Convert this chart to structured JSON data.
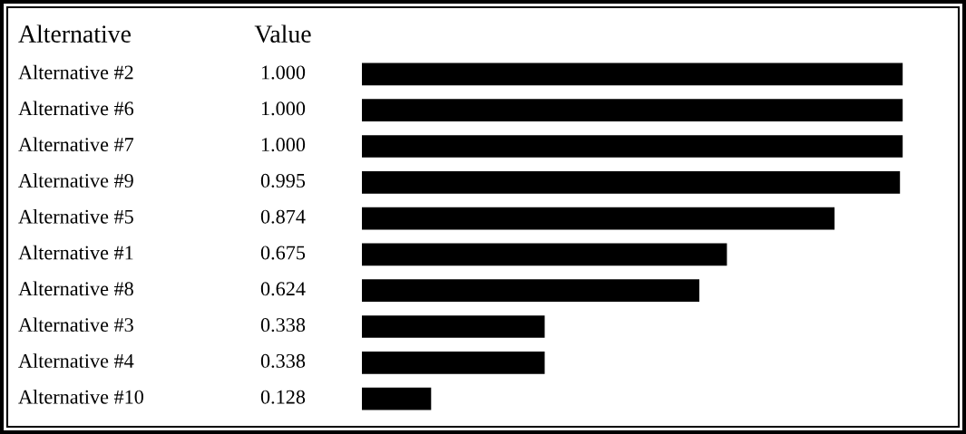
{
  "chart_data": {
    "type": "bar",
    "orientation": "horizontal",
    "ylabel": "Alternative",
    "xlabel": "Value",
    "categories": [
      "Alternative #2",
      "Alternative #6",
      "Alternative #7",
      "Alternative #9",
      "Alternative #5",
      "Alternative #1",
      "Alternative #8",
      "Alternative #3",
      "Alternative #4",
      "Alternative #10"
    ],
    "values": [
      1.0,
      1.0,
      1.0,
      0.995,
      0.874,
      0.675,
      0.624,
      0.338,
      0.338,
      0.128
    ],
    "value_labels": [
      "1.000",
      "1.000",
      "1.000",
      "0.995",
      "0.874",
      "0.675",
      "0.624",
      "0.338",
      "0.338",
      "0.128"
    ],
    "color": "#000000"
  }
}
